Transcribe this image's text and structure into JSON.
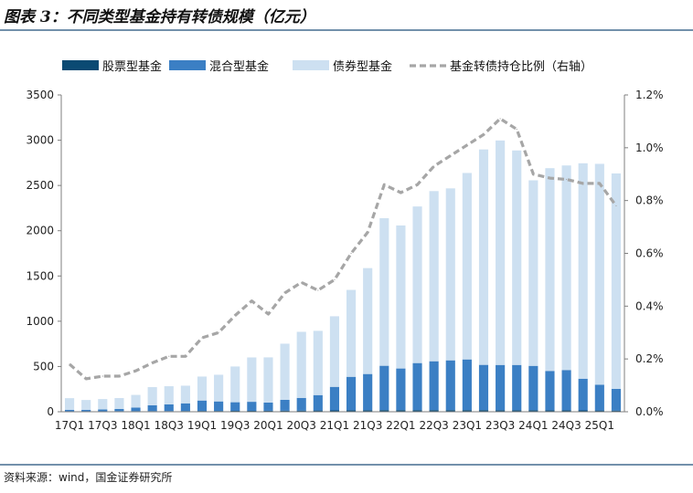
{
  "title": "图表 3：不同类型基金持有转债规模（亿元）",
  "source": "资料来源：wind，国金证券研究所",
  "colors": {
    "stock": "#0b4a73",
    "mixed": "#3b7fc4",
    "bond": "#cde0f1",
    "ratio": "#a6a6a6",
    "rule": "#1f4e79"
  },
  "chart_data": {
    "type": "bar",
    "stacked": true,
    "categories": [
      "17Q1",
      "17Q2",
      "17Q3",
      "17Q4",
      "18Q1",
      "18Q2",
      "18Q3",
      "18Q4",
      "19Q1",
      "19Q2",
      "19Q3",
      "19Q4",
      "20Q1",
      "20Q2",
      "20Q3",
      "20Q4",
      "21Q1",
      "21Q2",
      "21Q3",
      "21Q4",
      "22Q1",
      "22Q2",
      "22Q3",
      "22Q4",
      "23Q1",
      "23Q2",
      "23Q3",
      "23Q4",
      "24Q1",
      "24Q2",
      "24Q3",
      "24Q4",
      "25Q1",
      "25Q2"
    ],
    "x_tick_labels": [
      "17Q1",
      "17Q3",
      "18Q1",
      "18Q3",
      "19Q1",
      "19Q3",
      "20Q1",
      "20Q3",
      "21Q1",
      "21Q3",
      "22Q1",
      "22Q3",
      "23Q1",
      "23Q3",
      "24Q1",
      "24Q3",
      "25Q1"
    ],
    "series": [
      {
        "name": "股票型基金",
        "values": [
          5,
          5,
          5,
          6,
          6,
          7,
          7,
          8,
          9,
          9,
          10,
          10,
          11,
          12,
          13,
          14,
          15,
          16,
          17,
          18,
          18,
          18,
          18,
          18,
          18,
          18,
          17,
          17,
          17,
          16,
          16,
          15,
          14,
          13
        ]
      },
      {
        "name": "混合型基金",
        "values": [
          15,
          15,
          20,
          25,
          40,
          65,
          75,
          85,
          115,
          105,
          95,
          100,
          90,
          120,
          140,
          170,
          260,
          370,
          400,
          490,
          460,
          520,
          540,
          550,
          560,
          500,
          500,
          500,
          490,
          435,
          445,
          350,
          285,
          240
        ]
      },
      {
        "name": "债券型基金",
        "values": [
          130,
          110,
          115,
          120,
          140,
          200,
          200,
          195,
          265,
          295,
          395,
          490,
          500,
          620,
          730,
          710,
          780,
          960,
          1170,
          1630,
          1580,
          1730,
          1880,
          1900,
          2060,
          2380,
          2480,
          2370,
          2050,
          2240,
          2260,
          2380,
          2440,
          2380
        ]
      }
    ],
    "line_series": {
      "name": "基金转债持仓比例（右轴）",
      "axis": "right",
      "values": [
        0.18,
        0.125,
        0.135,
        0.135,
        0.155,
        0.185,
        0.21,
        0.21,
        0.28,
        0.3,
        0.365,
        0.42,
        0.37,
        0.45,
        0.49,
        0.46,
        0.5,
        0.6,
        0.68,
        0.86,
        0.83,
        0.86,
        0.93,
        0.97,
        1.01,
        1.05,
        1.11,
        1.07,
        0.9,
        0.885,
        0.88,
        0.865,
        0.865,
        0.78
      ]
    },
    "ylim": [
      0,
      3500
    ],
    "yticks": [
      0,
      500,
      1000,
      1500,
      2000,
      2500,
      3000,
      3500
    ],
    "y2lim": [
      0,
      1.2
    ],
    "y2ticks": [
      "0.0%",
      "0.2%",
      "0.4%",
      "0.6%",
      "0.8%",
      "1.0%",
      "1.2%"
    ],
    "legend": [
      "股票型基金",
      "混合型基金",
      "债券型基金",
      "基金转债持仓比例（右轴）"
    ],
    "legend_position": "top",
    "grid": false
  }
}
